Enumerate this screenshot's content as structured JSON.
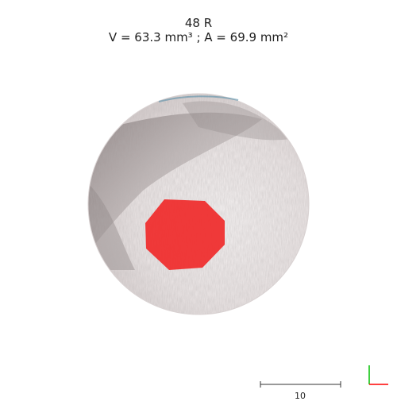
{
  "header": {
    "line1": "48 R",
    "line2": "V = 63.3 mm³ ; A = 69.9 mm²"
  },
  "image": {
    "subject": "circular-skin-specimen",
    "lesion_color": "#ef2f2f",
    "skin_tone_light": "#f1ecec",
    "skin_tone_dark": "#8a8080"
  },
  "scale_bar": {
    "label": "10"
  },
  "axes": {
    "x_color": "#ff0000",
    "y_color": "#00c000"
  }
}
